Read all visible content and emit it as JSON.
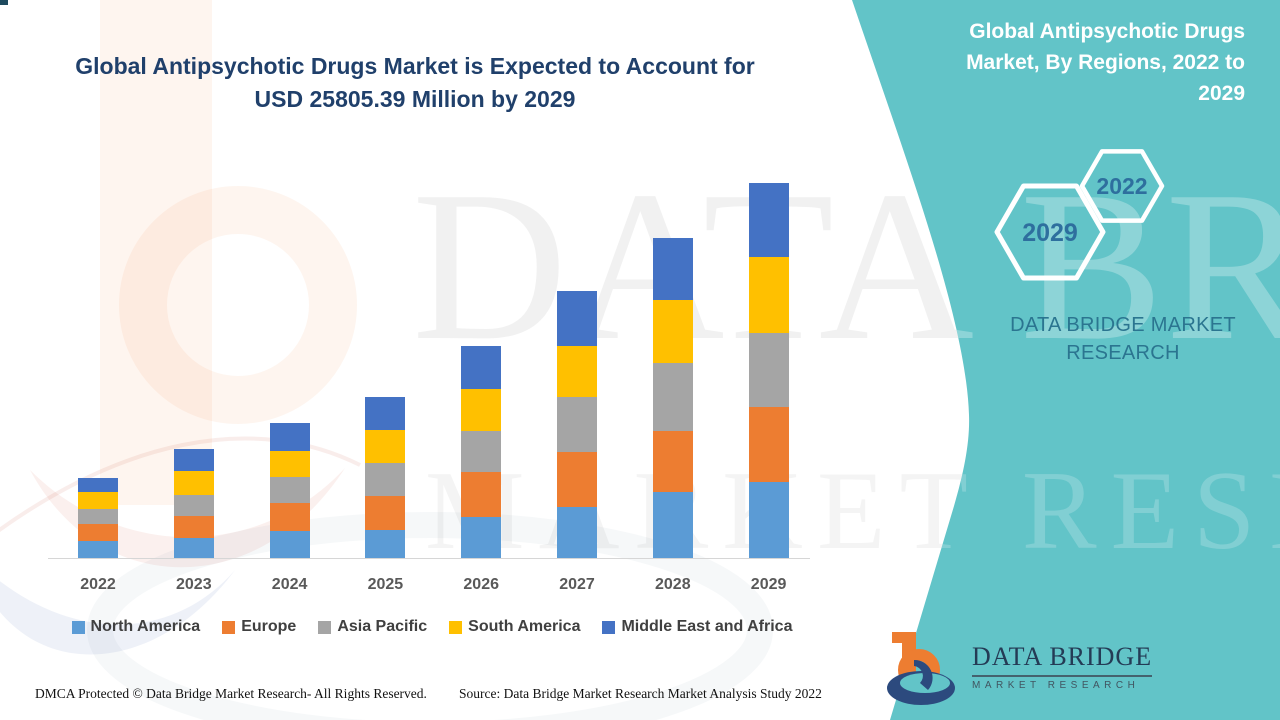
{
  "page": {
    "main_title_line1": "Global Antipsychotic Drugs Market is Expected to Account for",
    "main_title_line2": "USD 25805.39 Million by 2029"
  },
  "side_panel": {
    "heading": "Global Antipsychotic Drugs Market, By Regions, 2022 to 2029",
    "hexagon_back_label": "2029",
    "hexagon_front_label": "2022",
    "brand_caption": "DATA BRIDGE MARKET RESEARCH",
    "teal_color": "#62c4c8",
    "year_text_color": "#2e6f9e",
    "caption_color": "#2b7590"
  },
  "watermark": {
    "line1": "DATA BRIDGE",
    "line2": "MARKET RESEARCH"
  },
  "logo": {
    "name": "DATA BRIDGE",
    "subtitle": "MARKET RESEARCH",
    "orange": "#ed7d31",
    "navy": "#2c4a7e"
  },
  "footer": {
    "left": "DMCA Protected © Data Bridge Market Research- All Rights Reserved.",
    "right": "Source: Data Bridge Market Research Market Analysis Study 2022"
  },
  "chart_data": {
    "type": "bar",
    "stacked": true,
    "title": "Global Antipsychotic Drugs Market is Expected to Account for USD 25805.39 Million by 2029",
    "unit": "USD Million",
    "xlabel": "",
    "ylabel": "",
    "grid": false,
    "legend_position": "bottom",
    "ylim": [
      0,
      27000
    ],
    "categories": [
      "2022",
      "2023",
      "2024",
      "2025",
      "2026",
      "2027",
      "2028",
      "2029"
    ],
    "series": [
      {
        "name": "North America",
        "color": "#5b9bd5",
        "values": [
          1190,
          1370,
          1830,
          1940,
          2810,
          3500,
          4530,
          5210
        ]
      },
      {
        "name": "Europe",
        "color": "#ed7d31",
        "values": [
          1150,
          1530,
          1950,
          2330,
          3090,
          3820,
          4230,
          5150
        ]
      },
      {
        "name": "Asia Pacific",
        "color": "#a5a5a5",
        "values": [
          1030,
          1420,
          1780,
          2280,
          2860,
          3770,
          4640,
          5140
        ]
      },
      {
        "name": "South America",
        "color": "#ffc000",
        "values": [
          1150,
          1670,
          1800,
          2280,
          2900,
          3500,
          4340,
          5210
        ]
      },
      {
        "name": "Middle East and Africa",
        "color": "#4472c4",
        "values": [
          960,
          1490,
          1900,
          2240,
          2930,
          3770,
          4270,
          5095.39
        ]
      }
    ],
    "totals_estimated": [
      5480,
      7480,
      9260,
      11070,
      14590,
      18360,
      22010,
      25805.39
    ]
  }
}
